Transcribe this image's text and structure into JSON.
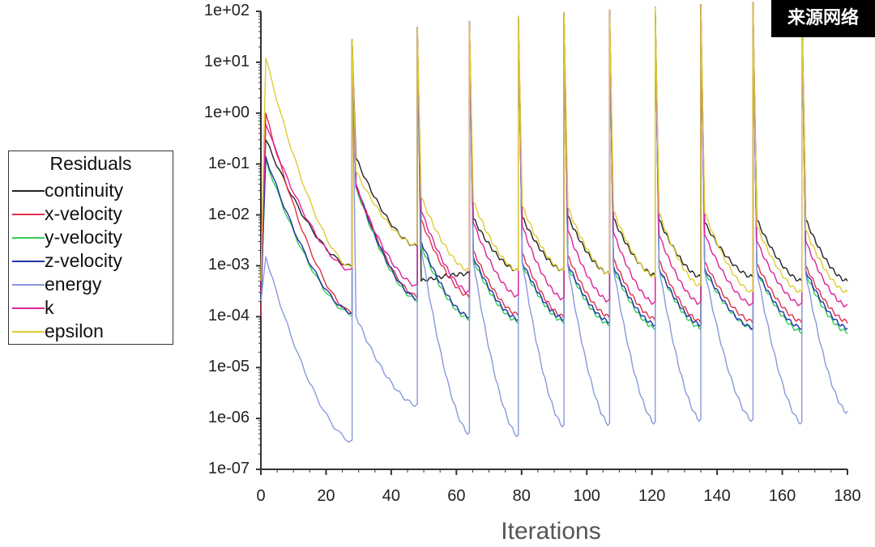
{
  "watermark": "来源网络",
  "chart_data": {
    "type": "line",
    "title": "",
    "xlabel": "Iterations",
    "ylabel": "",
    "yscale": "log",
    "xlim": [
      0,
      180
    ],
    "ylim": [
      1e-07,
      100
    ],
    "x_ticks": [
      "0",
      "20",
      "40",
      "60",
      "80",
      "100",
      "120",
      "140",
      "160",
      "180"
    ],
    "y_ticks": [
      "1e+02",
      "1e+01",
      "1e+00",
      "1e-01",
      "1e-02",
      "1e-03",
      "1e-04",
      "1e-05",
      "1e-06",
      "1e-07"
    ],
    "legend": {
      "title": "Residuals",
      "placement": "left"
    },
    "restarts": [
      0,
      28,
      48,
      64,
      79,
      93,
      107,
      121,
      135,
      151,
      166
    ],
    "series": [
      {
        "name": "continuity",
        "color": "#222222",
        "values": [
          [
            0.002,
            0.3,
            0.00095
          ],
          [
            28,
            0.13,
            0.0024
          ],
          [
            48,
            0.0005,
            0.0007
          ],
          [
            64,
            0.0085,
            0.0008
          ],
          [
            79,
            0.009,
            0.0008
          ],
          [
            93,
            0.0095,
            0.0007
          ],
          [
            107,
            0.0085,
            0.00065
          ],
          [
            121,
            0.008,
            0.0006
          ],
          [
            135,
            0.007,
            0.0006
          ],
          [
            151,
            0.008,
            0.0005
          ],
          [
            166,
            0.008,
            0.0005
          ]
        ]
      },
      {
        "name": "x-velocity",
        "color": "#e0304a",
        "values": [
          [
            0.0001,
            1.0,
            0.00012
          ],
          [
            28,
            0.04,
            0.00025
          ],
          [
            48,
            0.008,
            0.00025
          ],
          [
            64,
            0.002,
            0.00011
          ],
          [
            79,
            0.0018,
            0.0001
          ],
          [
            93,
            0.0016,
            0.0001
          ],
          [
            107,
            0.0014,
            9e-05
          ],
          [
            121,
            0.0013,
            8e-05
          ],
          [
            135,
            0.0012,
            8e-05
          ],
          [
            151,
            0.0011,
            8e-05
          ],
          [
            166,
            0.001,
            8e-05
          ]
        ]
      },
      {
        "name": "y-velocity",
        "color": "#33cc55",
        "values": [
          [
            0.0002,
            0.12,
            0.00011
          ],
          [
            28,
            0.035,
            0.00021
          ],
          [
            48,
            0.0025,
            9e-05
          ],
          [
            64,
            0.0013,
            8e-05
          ],
          [
            79,
            0.0011,
            8e-05
          ],
          [
            93,
            0.001,
            7e-05
          ],
          [
            107,
            0.0009,
            6e-05
          ],
          [
            121,
            0.0009,
            6e-05
          ],
          [
            135,
            0.0008,
            6e-05
          ],
          [
            151,
            0.0008,
            5e-05
          ],
          [
            166,
            0.0007,
            5e-05
          ]
        ]
      },
      {
        "name": "z-velocity",
        "color": "#2233aa",
        "values": [
          [
            0.0002,
            0.14,
            0.00012
          ],
          [
            28,
            0.04,
            0.00023
          ],
          [
            48,
            0.003,
            0.0001
          ],
          [
            64,
            0.0015,
            9e-05
          ],
          [
            79,
            0.0012,
            9e-05
          ],
          [
            93,
            0.0011,
            8e-05
          ],
          [
            107,
            0.001,
            7e-05
          ],
          [
            121,
            0.0009,
            7e-05
          ],
          [
            135,
            0.0009,
            6e-05
          ],
          [
            151,
            0.0008,
            6e-05
          ],
          [
            166,
            0.0008,
            6e-05
          ]
        ]
      },
      {
        "name": "energy",
        "color": "#8899dd",
        "values": [
          [
            0.0002,
            0.0015,
            3.5e-07
          ],
          [
            28,
            0.0001,
            1.8e-06
          ],
          [
            48,
            0.0022,
            5e-07
          ],
          [
            64,
            0.0012,
            4.5e-07
          ],
          [
            79,
            0.0012,
            7e-07
          ],
          [
            93,
            0.001,
            7.5e-07
          ],
          [
            107,
            0.0009,
            8e-07
          ],
          [
            121,
            0.0009,
            9e-07
          ],
          [
            135,
            0.0008,
            9e-07
          ],
          [
            151,
            0.0008,
            8e-07
          ],
          [
            166,
            0.0007,
            1.3e-06
          ]
        ]
      },
      {
        "name": "k",
        "color": "#dd2299",
        "values": [
          [
            0.0003,
            0.6,
            0.0008
          ],
          [
            28,
            0.035,
            0.0004
          ],
          [
            48,
            0.012,
            0.0003
          ],
          [
            64,
            0.007,
            0.00025
          ],
          [
            79,
            0.006,
            0.00022
          ],
          [
            93,
            0.005,
            0.0002
          ],
          [
            107,
            0.0045,
            0.00018
          ],
          [
            121,
            0.004,
            0.00018
          ],
          [
            135,
            0.004,
            0.00017
          ],
          [
            151,
            0.003,
            0.00017
          ],
          [
            166,
            0.003,
            0.00016
          ]
        ]
      },
      {
        "name": "epsilon",
        "color": "#ddcc33",
        "values": [
          [
            0.0005,
            12,
            0.0009
          ],
          [
            28,
            0.07,
            0.0025
          ],
          [
            48,
            0.022,
            0.0008
          ],
          [
            64,
            0.018,
            0.0008
          ],
          [
            79,
            0.015,
            0.0008
          ],
          [
            93,
            0.014,
            0.0007
          ],
          [
            107,
            0.012,
            0.0006
          ],
          [
            121,
            0.011,
            0.0004
          ],
          [
            135,
            0.011,
            0.0003
          ],
          [
            151,
            0.006,
            0.0003
          ],
          [
            166,
            0.005,
            0.0003
          ]
        ]
      }
    ]
  }
}
